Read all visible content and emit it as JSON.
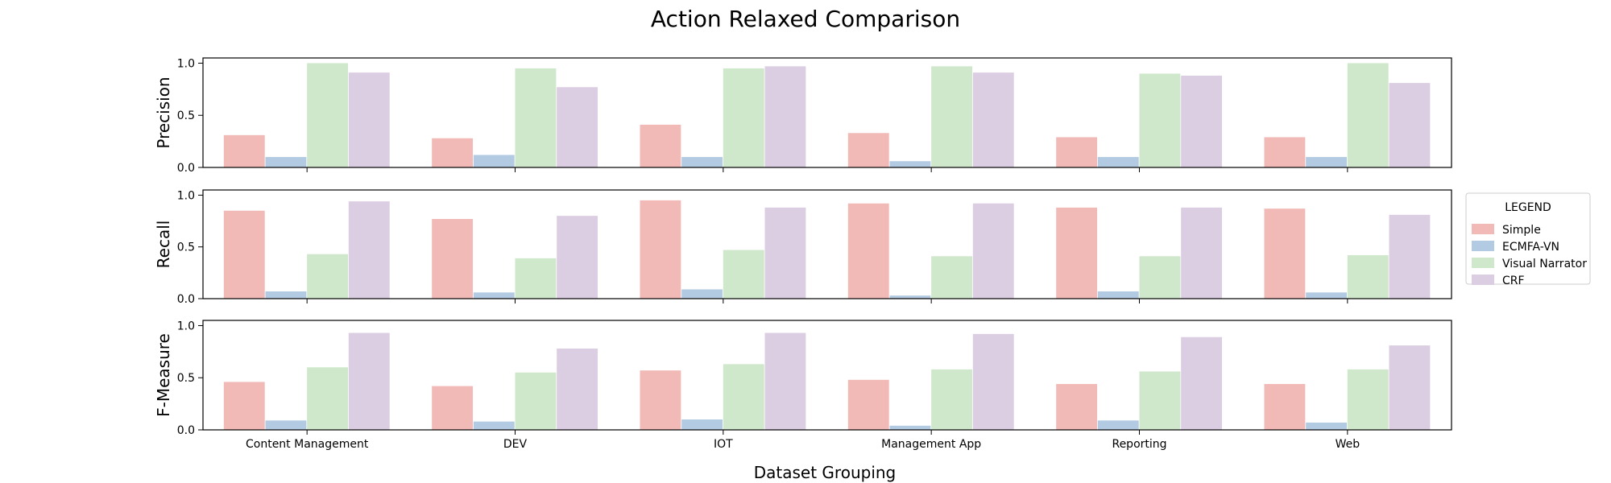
{
  "chart_data": {
    "type": "bar",
    "title": "Action Relaxed Comparison",
    "xlabel": "Dataset Grouping",
    "categories": [
      "Content Management",
      "DEV",
      "IOT",
      "Management App",
      "Reporting",
      "Web"
    ],
    "legend": {
      "title": "LEGEND",
      "placement": "right",
      "entries": [
        "Simple",
        "ECMFA-VN",
        "Visual Narrator",
        "CRF"
      ]
    },
    "colors": [
      "#f2bab7",
      "#b3cbe2",
      "#cfe7cb",
      "#dccee2"
    ],
    "yticks": [
      "0.0",
      "0.5",
      "1.0"
    ],
    "ylim": [
      0,
      1.05
    ],
    "panels": [
      {
        "ylabel": "Precision",
        "series": [
          {
            "name": "Simple",
            "values": [
              0.31,
              0.28,
              0.41,
              0.33,
              0.29,
              0.29
            ]
          },
          {
            "name": "ECMFA-VN",
            "values": [
              0.1,
              0.12,
              0.1,
              0.06,
              0.1,
              0.1
            ]
          },
          {
            "name": "Visual Narrator",
            "values": [
              1.0,
              0.95,
              0.95,
              0.97,
              0.9,
              1.0
            ]
          },
          {
            "name": "CRF",
            "values": [
              0.91,
              0.77,
              0.97,
              0.91,
              0.88,
              0.81
            ]
          }
        ]
      },
      {
        "ylabel": "Recall",
        "series": [
          {
            "name": "Simple",
            "values": [
              0.85,
              0.77,
              0.95,
              0.92,
              0.88,
              0.87
            ]
          },
          {
            "name": "ECMFA-VN",
            "values": [
              0.07,
              0.06,
              0.09,
              0.03,
              0.07,
              0.06
            ]
          },
          {
            "name": "Visual Narrator",
            "values": [
              0.43,
              0.39,
              0.47,
              0.41,
              0.41,
              0.42
            ]
          },
          {
            "name": "CRF",
            "values": [
              0.94,
              0.8,
              0.88,
              0.92,
              0.88,
              0.81
            ]
          }
        ]
      },
      {
        "ylabel": "F-Measure",
        "series": [
          {
            "name": "Simple",
            "values": [
              0.46,
              0.42,
              0.57,
              0.48,
              0.44,
              0.44
            ]
          },
          {
            "name": "ECMFA-VN",
            "values": [
              0.09,
              0.08,
              0.1,
              0.04,
              0.09,
              0.07
            ]
          },
          {
            "name": "Visual Narrator",
            "values": [
              0.6,
              0.55,
              0.63,
              0.58,
              0.56,
              0.58
            ]
          },
          {
            "name": "CRF",
            "values": [
              0.93,
              0.78,
              0.93,
              0.92,
              0.89,
              0.81
            ]
          }
        ]
      }
    ]
  }
}
